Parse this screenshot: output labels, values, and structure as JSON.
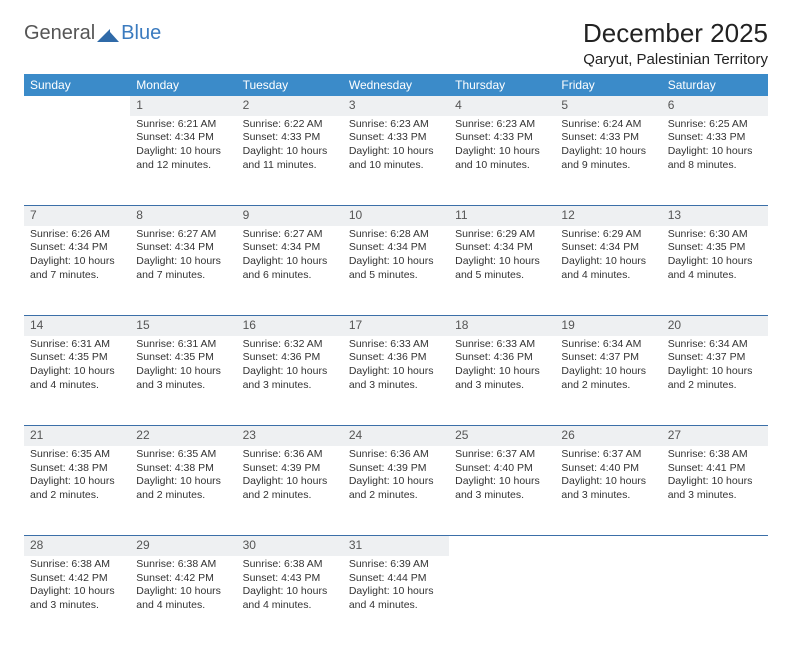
{
  "logo": {
    "text1": "General",
    "text2": "Blue"
  },
  "title": "December 2025",
  "location": "Qaryut, Palestinian Territory",
  "colors": {
    "header_bg": "#3b8bc9",
    "header_text": "#ffffff",
    "daynum_bg": "#eef0f2",
    "row_border": "#3b6fa8",
    "body_text": "#333333",
    "logo_gray": "#555555",
    "logo_blue": "#3b7bbf",
    "page_bg": "#ffffff"
  },
  "font": {
    "family": "Arial",
    "th_size": 12,
    "cell_size": 10.5,
    "title_size": 26,
    "location_size": 15
  },
  "day_headers": [
    "Sunday",
    "Monday",
    "Tuesday",
    "Wednesday",
    "Thursday",
    "Friday",
    "Saturday"
  ],
  "weeks": [
    [
      null,
      {
        "n": "1",
        "sr": "Sunrise: 6:21 AM",
        "ss": "Sunset: 4:34 PM",
        "dl": "Daylight: 10 hours and 12 minutes."
      },
      {
        "n": "2",
        "sr": "Sunrise: 6:22 AM",
        "ss": "Sunset: 4:33 PM",
        "dl": "Daylight: 10 hours and 11 minutes."
      },
      {
        "n": "3",
        "sr": "Sunrise: 6:23 AM",
        "ss": "Sunset: 4:33 PM",
        "dl": "Daylight: 10 hours and 10 minutes."
      },
      {
        "n": "4",
        "sr": "Sunrise: 6:23 AM",
        "ss": "Sunset: 4:33 PM",
        "dl": "Daylight: 10 hours and 10 minutes."
      },
      {
        "n": "5",
        "sr": "Sunrise: 6:24 AM",
        "ss": "Sunset: 4:33 PM",
        "dl": "Daylight: 10 hours and 9 minutes."
      },
      {
        "n": "6",
        "sr": "Sunrise: 6:25 AM",
        "ss": "Sunset: 4:33 PM",
        "dl": "Daylight: 10 hours and 8 minutes."
      }
    ],
    [
      {
        "n": "7",
        "sr": "Sunrise: 6:26 AM",
        "ss": "Sunset: 4:34 PM",
        "dl": "Daylight: 10 hours and 7 minutes."
      },
      {
        "n": "8",
        "sr": "Sunrise: 6:27 AM",
        "ss": "Sunset: 4:34 PM",
        "dl": "Daylight: 10 hours and 7 minutes."
      },
      {
        "n": "9",
        "sr": "Sunrise: 6:27 AM",
        "ss": "Sunset: 4:34 PM",
        "dl": "Daylight: 10 hours and 6 minutes."
      },
      {
        "n": "10",
        "sr": "Sunrise: 6:28 AM",
        "ss": "Sunset: 4:34 PM",
        "dl": "Daylight: 10 hours and 5 minutes."
      },
      {
        "n": "11",
        "sr": "Sunrise: 6:29 AM",
        "ss": "Sunset: 4:34 PM",
        "dl": "Daylight: 10 hours and 5 minutes."
      },
      {
        "n": "12",
        "sr": "Sunrise: 6:29 AM",
        "ss": "Sunset: 4:34 PM",
        "dl": "Daylight: 10 hours and 4 minutes."
      },
      {
        "n": "13",
        "sr": "Sunrise: 6:30 AM",
        "ss": "Sunset: 4:35 PM",
        "dl": "Daylight: 10 hours and 4 minutes."
      }
    ],
    [
      {
        "n": "14",
        "sr": "Sunrise: 6:31 AM",
        "ss": "Sunset: 4:35 PM",
        "dl": "Daylight: 10 hours and 4 minutes."
      },
      {
        "n": "15",
        "sr": "Sunrise: 6:31 AM",
        "ss": "Sunset: 4:35 PM",
        "dl": "Daylight: 10 hours and 3 minutes."
      },
      {
        "n": "16",
        "sr": "Sunrise: 6:32 AM",
        "ss": "Sunset: 4:36 PM",
        "dl": "Daylight: 10 hours and 3 minutes."
      },
      {
        "n": "17",
        "sr": "Sunrise: 6:33 AM",
        "ss": "Sunset: 4:36 PM",
        "dl": "Daylight: 10 hours and 3 minutes."
      },
      {
        "n": "18",
        "sr": "Sunrise: 6:33 AM",
        "ss": "Sunset: 4:36 PM",
        "dl": "Daylight: 10 hours and 3 minutes."
      },
      {
        "n": "19",
        "sr": "Sunrise: 6:34 AM",
        "ss": "Sunset: 4:37 PM",
        "dl": "Daylight: 10 hours and 2 minutes."
      },
      {
        "n": "20",
        "sr": "Sunrise: 6:34 AM",
        "ss": "Sunset: 4:37 PM",
        "dl": "Daylight: 10 hours and 2 minutes."
      }
    ],
    [
      {
        "n": "21",
        "sr": "Sunrise: 6:35 AM",
        "ss": "Sunset: 4:38 PM",
        "dl": "Daylight: 10 hours and 2 minutes."
      },
      {
        "n": "22",
        "sr": "Sunrise: 6:35 AM",
        "ss": "Sunset: 4:38 PM",
        "dl": "Daylight: 10 hours and 2 minutes."
      },
      {
        "n": "23",
        "sr": "Sunrise: 6:36 AM",
        "ss": "Sunset: 4:39 PM",
        "dl": "Daylight: 10 hours and 2 minutes."
      },
      {
        "n": "24",
        "sr": "Sunrise: 6:36 AM",
        "ss": "Sunset: 4:39 PM",
        "dl": "Daylight: 10 hours and 2 minutes."
      },
      {
        "n": "25",
        "sr": "Sunrise: 6:37 AM",
        "ss": "Sunset: 4:40 PM",
        "dl": "Daylight: 10 hours and 3 minutes."
      },
      {
        "n": "26",
        "sr": "Sunrise: 6:37 AM",
        "ss": "Sunset: 4:40 PM",
        "dl": "Daylight: 10 hours and 3 minutes."
      },
      {
        "n": "27",
        "sr": "Sunrise: 6:38 AM",
        "ss": "Sunset: 4:41 PM",
        "dl": "Daylight: 10 hours and 3 minutes."
      }
    ],
    [
      {
        "n": "28",
        "sr": "Sunrise: 6:38 AM",
        "ss": "Sunset: 4:42 PM",
        "dl": "Daylight: 10 hours and 3 minutes."
      },
      {
        "n": "29",
        "sr": "Sunrise: 6:38 AM",
        "ss": "Sunset: 4:42 PM",
        "dl": "Daylight: 10 hours and 4 minutes."
      },
      {
        "n": "30",
        "sr": "Sunrise: 6:38 AM",
        "ss": "Sunset: 4:43 PM",
        "dl": "Daylight: 10 hours and 4 minutes."
      },
      {
        "n": "31",
        "sr": "Sunrise: 6:39 AM",
        "ss": "Sunset: 4:44 PM",
        "dl": "Daylight: 10 hours and 4 minutes."
      },
      null,
      null,
      null
    ]
  ]
}
